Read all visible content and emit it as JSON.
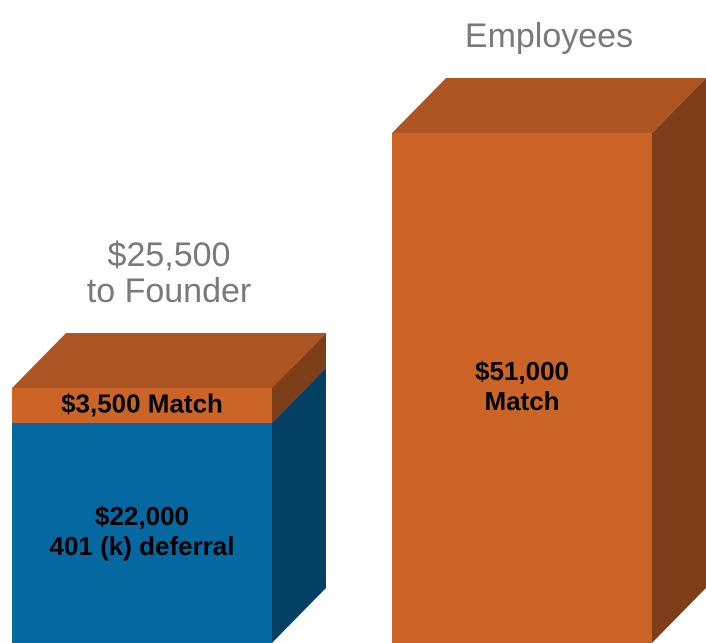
{
  "chart_data": {
    "type": "stacked_bar_3d",
    "categories": [
      [
        "$25,500",
        "to Founder"
      ],
      [
        "Employees"
      ]
    ],
    "series": [
      {
        "color": "#0568a0",
        "values": [
          22000,
          null
        ],
        "value_labels": [
          [
            "$22,000",
            "401 (k) deferral"
          ],
          null
        ]
      },
      {
        "color": "#cc6428",
        "values": [
          3500,
          51000
        ],
        "value_labels": [
          [
            "$3,500 Match"
          ],
          [
            "$51,000",
            "Match"
          ]
        ]
      }
    ]
  }
}
